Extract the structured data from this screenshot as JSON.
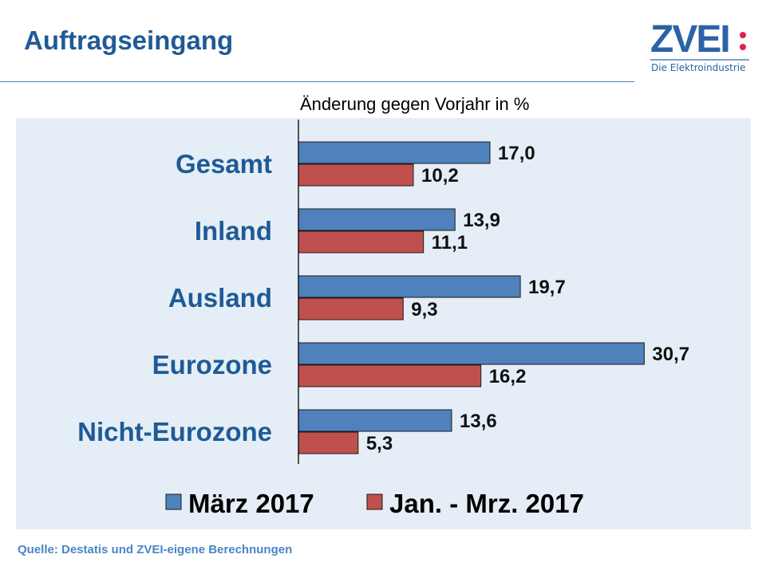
{
  "header": {
    "title": "Auftragseingang",
    "logo_text": "ZVEI",
    "logo_subtitle": "Die Elektroindustrie"
  },
  "chart_data": {
    "type": "bar",
    "orientation": "horizontal",
    "title": "Änderung gegen Vorjahr in %",
    "categories": [
      "Gesamt",
      "Inland",
      "Ausland",
      "Eurozone",
      "Nicht-Eurozone"
    ],
    "series": [
      {
        "name": "März 2017",
        "color": "#4f81bd",
        "values": [
          17.0,
          13.9,
          19.7,
          30.7,
          13.6
        ],
        "labels": [
          "17,0",
          "13,9",
          "19,7",
          "30,7",
          "13,6"
        ]
      },
      {
        "name": "Jan. - Mrz. 2017",
        "color": "#c0504d",
        "values": [
          10.2,
          11.1,
          9.3,
          16.2,
          5.3
        ],
        "labels": [
          "10,2",
          "11,1",
          "9,3",
          "16,2",
          "5,3"
        ]
      }
    ],
    "legend": "bottom",
    "grid": false
  },
  "footer": {
    "source": "Quelle: Destatis und ZVEI-eigene Berechnungen"
  }
}
